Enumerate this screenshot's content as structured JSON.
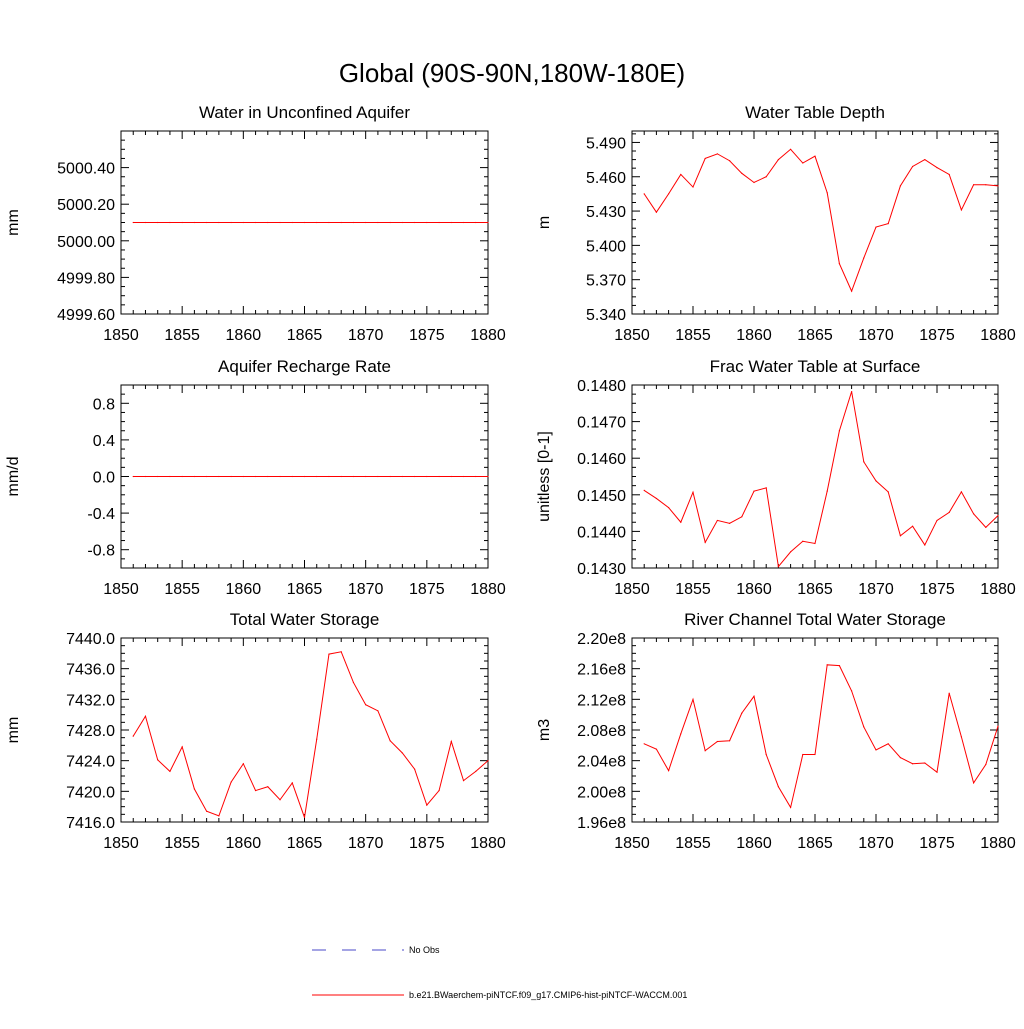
{
  "figure": {
    "title": "Global (90S-90N,180W-180E)"
  },
  "legend": [
    {
      "label": "No Obs",
      "color": "#4a4ac8",
      "dash": true
    },
    {
      "label": "b.e21.BWaerchem-piNTCF.f09_g17.CMIP6-hist-piNTCF-WACCM.001",
      "color": "#ff0000",
      "dash": false
    }
  ],
  "chart_data": [
    {
      "type": "line",
      "title": "Water in Unconfined Aquifer",
      "ylabel": "mm",
      "xlim": [
        1850,
        1880
      ],
      "ylim": [
        4999.6,
        5000.6
      ],
      "xticks": [
        1850,
        1855,
        1860,
        1865,
        1870,
        1875,
        1880
      ],
      "yticks": [
        4999.6,
        4999.8,
        5000.0,
        5000.2,
        5000.4
      ],
      "ytick_labels": [
        "4999.60",
        "4999.80",
        "5000.00",
        "5000.20",
        "5000.40"
      ],
      "series": [
        {
          "color": "#ff0000",
          "x": [
            1851,
            1852,
            1853,
            1854,
            1855,
            1856,
            1857,
            1858,
            1859,
            1860,
            1861,
            1862,
            1863,
            1864,
            1865,
            1866,
            1867,
            1868,
            1869,
            1870,
            1871,
            1872,
            1873,
            1874,
            1875,
            1876,
            1877,
            1878,
            1879,
            1880
          ],
          "y": [
            5000.1,
            5000.1,
            5000.1,
            5000.1,
            5000.1,
            5000.1,
            5000.1,
            5000.1,
            5000.1,
            5000.1,
            5000.1,
            5000.1,
            5000.1,
            5000.1,
            5000.1,
            5000.1,
            5000.1,
            5000.1,
            5000.1,
            5000.1,
            5000.1,
            5000.1,
            5000.1,
            5000.1,
            5000.1,
            5000.1,
            5000.1,
            5000.1,
            5000.1,
            5000.1
          ]
        }
      ]
    },
    {
      "type": "line",
      "title": "Water Table Depth",
      "ylabel": "m",
      "xlim": [
        1850,
        1880
      ],
      "ylim": [
        5.34,
        5.5
      ],
      "xticks": [
        1850,
        1855,
        1860,
        1865,
        1870,
        1875,
        1880
      ],
      "yticks": [
        5.34,
        5.37,
        5.4,
        5.43,
        5.46,
        5.49
      ],
      "ytick_labels": [
        "5.340",
        "5.370",
        "5.400",
        "5.430",
        "5.460",
        "5.490"
      ],
      "series": [
        {
          "color": "#ff0000",
          "x": [
            1851,
            1852,
            1853,
            1854,
            1855,
            1856,
            1857,
            1858,
            1859,
            1860,
            1861,
            1862,
            1863,
            1864,
            1865,
            1866,
            1867,
            1868,
            1869,
            1870,
            1871,
            1872,
            1873,
            1874,
            1875,
            1876,
            1877,
            1878,
            1879,
            1880
          ],
          "y": [
            5.445,
            5.429,
            5.445,
            5.462,
            5.451,
            5.476,
            5.48,
            5.474,
            5.463,
            5.455,
            5.46,
            5.475,
            5.484,
            5.472,
            5.478,
            5.446,
            5.384,
            5.36,
            5.389,
            5.416,
            5.419,
            5.452,
            5.469,
            5.475,
            5.468,
            5.462,
            5.431,
            5.453,
            5.453,
            5.452
          ]
        }
      ]
    },
    {
      "type": "line",
      "title": "Aquifer Recharge Rate",
      "ylabel": "mm/d",
      "xlim": [
        1850,
        1880
      ],
      "ylim": [
        -1.0,
        1.0
      ],
      "xticks": [
        1850,
        1855,
        1860,
        1865,
        1870,
        1875,
        1880
      ],
      "yticks": [
        -0.8,
        -0.4,
        0.0,
        0.4,
        0.8
      ],
      "ytick_labels": [
        "-0.8",
        "-0.4",
        "0.0",
        "0.4",
        "0.8"
      ],
      "series": [
        {
          "color": "#ff0000",
          "x": [
            1851,
            1852,
            1853,
            1854,
            1855,
            1856,
            1857,
            1858,
            1859,
            1860,
            1861,
            1862,
            1863,
            1864,
            1865,
            1866,
            1867,
            1868,
            1869,
            1870,
            1871,
            1872,
            1873,
            1874,
            1875,
            1876,
            1877,
            1878,
            1879,
            1880
          ],
          "y": [
            0,
            0,
            0,
            0,
            0,
            0,
            0,
            0,
            0,
            0,
            0,
            0,
            0,
            0,
            0,
            0,
            0,
            0,
            0,
            0,
            0,
            0,
            0,
            0,
            0,
            0,
            0,
            0,
            0,
            0
          ]
        }
      ]
    },
    {
      "type": "line",
      "title": "Frac Water Table at Surface",
      "ylabel": "unitless [0-1]",
      "xlim": [
        1850,
        1880
      ],
      "ylim": [
        0.143,
        0.148
      ],
      "xticks": [
        1850,
        1855,
        1860,
        1865,
        1870,
        1875,
        1880
      ],
      "yticks": [
        0.143,
        0.144,
        0.145,
        0.146,
        0.147,
        0.148
      ],
      "ytick_labels": [
        "0.1430",
        "0.1440",
        "0.1450",
        "0.1460",
        "0.1470",
        "0.1480"
      ],
      "series": [
        {
          "color": "#ff0000",
          "x": [
            1851,
            1852,
            1853,
            1854,
            1855,
            1856,
            1857,
            1858,
            1859,
            1860,
            1861,
            1862,
            1863,
            1864,
            1865,
            1866,
            1867,
            1868,
            1869,
            1870,
            1871,
            1872,
            1873,
            1874,
            1875,
            1876,
            1877,
            1878,
            1879,
            1880
          ],
          "y": [
            0.14512,
            0.1449,
            0.14465,
            0.14425,
            0.14507,
            0.1437,
            0.1443,
            0.14422,
            0.1444,
            0.1451,
            0.14519,
            0.14304,
            0.14344,
            0.14373,
            0.14367,
            0.1451,
            0.14675,
            0.14782,
            0.1459,
            0.14538,
            0.14508,
            0.14388,
            0.14414,
            0.14363,
            0.1443,
            0.14452,
            0.14508,
            0.14448,
            0.14411,
            0.14443
          ]
        }
      ]
    },
    {
      "type": "line",
      "title": "Total Water Storage",
      "ylabel": "mm",
      "xlim": [
        1850,
        1880
      ],
      "ylim": [
        7416.0,
        7440.0
      ],
      "xticks": [
        1850,
        1855,
        1860,
        1865,
        1870,
        1875,
        1880
      ],
      "yticks": [
        7416,
        7420,
        7424,
        7428,
        7432,
        7436,
        7440
      ],
      "ytick_labels": [
        "7416.0",
        "7420.0",
        "7424.0",
        "7428.0",
        "7432.0",
        "7436.0",
        "7440.0"
      ],
      "series": [
        {
          "color": "#ff0000",
          "x": [
            1851,
            1852,
            1853,
            1854,
            1855,
            1856,
            1857,
            1858,
            1859,
            1860,
            1861,
            1862,
            1863,
            1864,
            1865,
            1866,
            1867,
            1868,
            1869,
            1870,
            1871,
            1872,
            1873,
            1874,
            1875,
            1876,
            1877,
            1878,
            1879,
            1880
          ],
          "y": [
            7427.2,
            7429.8,
            7424.1,
            7422.6,
            7425.8,
            7420.3,
            7417.4,
            7416.8,
            7421.2,
            7423.6,
            7420.1,
            7420.6,
            7418.9,
            7421.1,
            7416.6,
            7426.8,
            7437.9,
            7438.2,
            7434.2,
            7431.3,
            7430.5,
            7426.6,
            7425.0,
            7422.9,
            7418.2,
            7420.1,
            7426.5,
            7421.4,
            7422.6,
            7424.0
          ]
        }
      ]
    },
    {
      "type": "line",
      "title": "River Channel Total Water Storage",
      "ylabel": "m3",
      "xlim": [
        1850,
        1880
      ],
      "ylim": [
        196000000.0,
        220000000.0
      ],
      "xticks": [
        1850,
        1855,
        1860,
        1865,
        1870,
        1875,
        1880
      ],
      "yticks": [
        196000000.0,
        200000000.0,
        204000000.0,
        208000000.0,
        212000000.0,
        216000000.0,
        220000000.0
      ],
      "ytick_labels": [
        "1.96e8",
        "2.00e8",
        "2.04e8",
        "2.08e8",
        "2.12e8",
        "2.16e8",
        "2.20e8"
      ],
      "series": [
        {
          "color": "#ff0000",
          "x": [
            1851,
            1852,
            1853,
            1854,
            1855,
            1856,
            1857,
            1858,
            1859,
            1860,
            1861,
            1862,
            1863,
            1864,
            1865,
            1866,
            1867,
            1868,
            1869,
            1870,
            1871,
            1872,
            1873,
            1874,
            1875,
            1876,
            1877,
            1878,
            1879,
            1880
          ],
          "y": [
            206200000.0,
            205500000.0,
            202700000.0,
            207500000.0,
            212000000.0,
            205300000.0,
            206500000.0,
            206600000.0,
            210200000.0,
            212400000.0,
            204800000.0,
            200600000.0,
            197900000.0,
            204800000.0,
            204800000.0,
            216500000.0,
            216400000.0,
            213100000.0,
            208400000.0,
            205400000.0,
            206200000.0,
            204400000.0,
            203600000.0,
            203700000.0,
            202500000.0,
            212800000.0,
            207100000.0,
            201100000.0,
            203500000.0,
            208500000.0
          ]
        }
      ]
    }
  ]
}
